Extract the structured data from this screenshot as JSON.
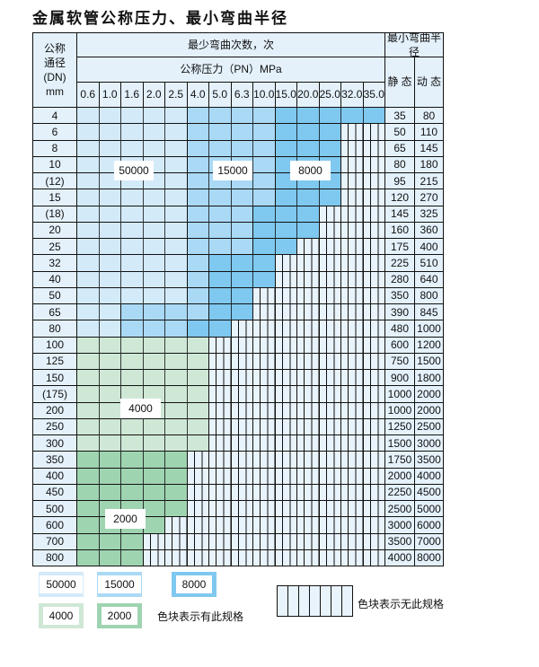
{
  "title": "金属软管公称压力、最小弯曲半径",
  "header": {
    "dn": "公称\n通径\n(DN)\nmm",
    "cycles": "最少弯曲次数，次",
    "pressure": "公称压力（PN）MPa",
    "radius": "最小弯曲半径",
    "static": "静 态",
    "dynamic": "动 态",
    "pressures": [
      "0.6",
      "1.0",
      "1.6",
      "2.0",
      "2.5",
      "4.0",
      "5.0",
      "6.3",
      "10.0",
      "15.0",
      "20.0",
      "25.0",
      "32.0",
      "35.0"
    ]
  },
  "colors": {
    "L": "#d3eaf9",
    "M": "#aad9f5",
    "D": "#7fc8ef",
    "G": "#cfe8d6",
    "H": "#9fd4b1",
    "empty": "#e8f3fc"
  },
  "cell_legend": {
    "L": "50000",
    "M": "15000",
    "D": "8000",
    "G": "4000",
    "H": "2000",
    "-": "无此规格"
  },
  "rows": [
    {
      "dn": "4",
      "cells": "LLLLLMMMMDDDDD",
      "static": "35",
      "dynamic": "80"
    },
    {
      "dn": "6",
      "cells": "LLLLLMMMMDDD--",
      "static": "50",
      "dynamic": "110"
    },
    {
      "dn": "8",
      "cells": "LLLLLMMMMDDD--",
      "static": "65",
      "dynamic": "145"
    },
    {
      "dn": "10",
      "cells": "LLLLLMMMMDDD--",
      "static": "80",
      "dynamic": "180"
    },
    {
      "dn": "(12)",
      "cells": "LLLLLMMMMDDD--",
      "static": "95",
      "dynamic": "215"
    },
    {
      "dn": "15",
      "cells": "LLLLLMMMMDDD--",
      "static": "120",
      "dynamic": "270"
    },
    {
      "dn": "(18)",
      "cells": "LLLLLMMMDDD---",
      "static": "145",
      "dynamic": "325"
    },
    {
      "dn": "20",
      "cells": "LLLLLMMMDDD---",
      "static": "160",
      "dynamic": "360"
    },
    {
      "dn": "25",
      "cells": "LLLLLMMMDD----",
      "static": "175",
      "dynamic": "400"
    },
    {
      "dn": "32",
      "cells": "LLLLLMDDD-----",
      "static": "225",
      "dynamic": "510"
    },
    {
      "dn": "40",
      "cells": "LLLLLMDDD-----",
      "static": "280",
      "dynamic": "640"
    },
    {
      "dn": "50",
      "cells": "LLLLLMDD------",
      "static": "350",
      "dynamic": "800"
    },
    {
      "dn": "65",
      "cells": "LLMMMMDD------",
      "static": "390",
      "dynamic": "845"
    },
    {
      "dn": "80",
      "cells": "LLMMMDD-------",
      "static": "480",
      "dynamic": "1000"
    },
    {
      "dn": "100",
      "cells": "GGGGGG--------",
      "static": "600",
      "dynamic": "1200"
    },
    {
      "dn": "125",
      "cells": "GGGGGG--------",
      "static": "750",
      "dynamic": "1500"
    },
    {
      "dn": "150",
      "cells": "GGGGGG--------",
      "static": "900",
      "dynamic": "1800"
    },
    {
      "dn": "(175)",
      "cells": "GGGGGG--------",
      "static": "1000",
      "dynamic": "2000"
    },
    {
      "dn": "200",
      "cells": "GGGGGG--------",
      "static": "1000",
      "dynamic": "2000"
    },
    {
      "dn": "250",
      "cells": "GGGGGG--------",
      "static": "1250",
      "dynamic": "2500"
    },
    {
      "dn": "300",
      "cells": "GGGGGG--------",
      "static": "1500",
      "dynamic": "3000"
    },
    {
      "dn": "350",
      "cells": "HHHHH---------",
      "static": "1750",
      "dynamic": "3500"
    },
    {
      "dn": "400",
      "cells": "HHHHH---------",
      "static": "2000",
      "dynamic": "4000"
    },
    {
      "dn": "450",
      "cells": "HHHHH---------",
      "static": "2250",
      "dynamic": "4500"
    },
    {
      "dn": "500",
      "cells": "HHHHH---------",
      "static": "2500",
      "dynamic": "5000"
    },
    {
      "dn": "600",
      "cells": "HHHH----------",
      "static": "3000",
      "dynamic": "6000"
    },
    {
      "dn": "700",
      "cells": "HHH-----------",
      "static": "3500",
      "dynamic": "7000"
    },
    {
      "dn": "800",
      "cells": "HHH-----------",
      "static": "4000",
      "dynamic": "8000"
    }
  ],
  "region_labels": {
    "L": "50000",
    "M": "15000",
    "D": "8000",
    "G": "4000",
    "H": "2000"
  },
  "legend": {
    "items": [
      {
        "key": "L",
        "label": "50000"
      },
      {
        "key": "M",
        "label": "15000"
      },
      {
        "key": "D",
        "label": "8000"
      },
      {
        "key": "G",
        "label": "4000"
      },
      {
        "key": "H",
        "label": "2000"
      }
    ],
    "has_spec": "色块表示有此规格",
    "no_spec": "色块表示无此规格"
  }
}
